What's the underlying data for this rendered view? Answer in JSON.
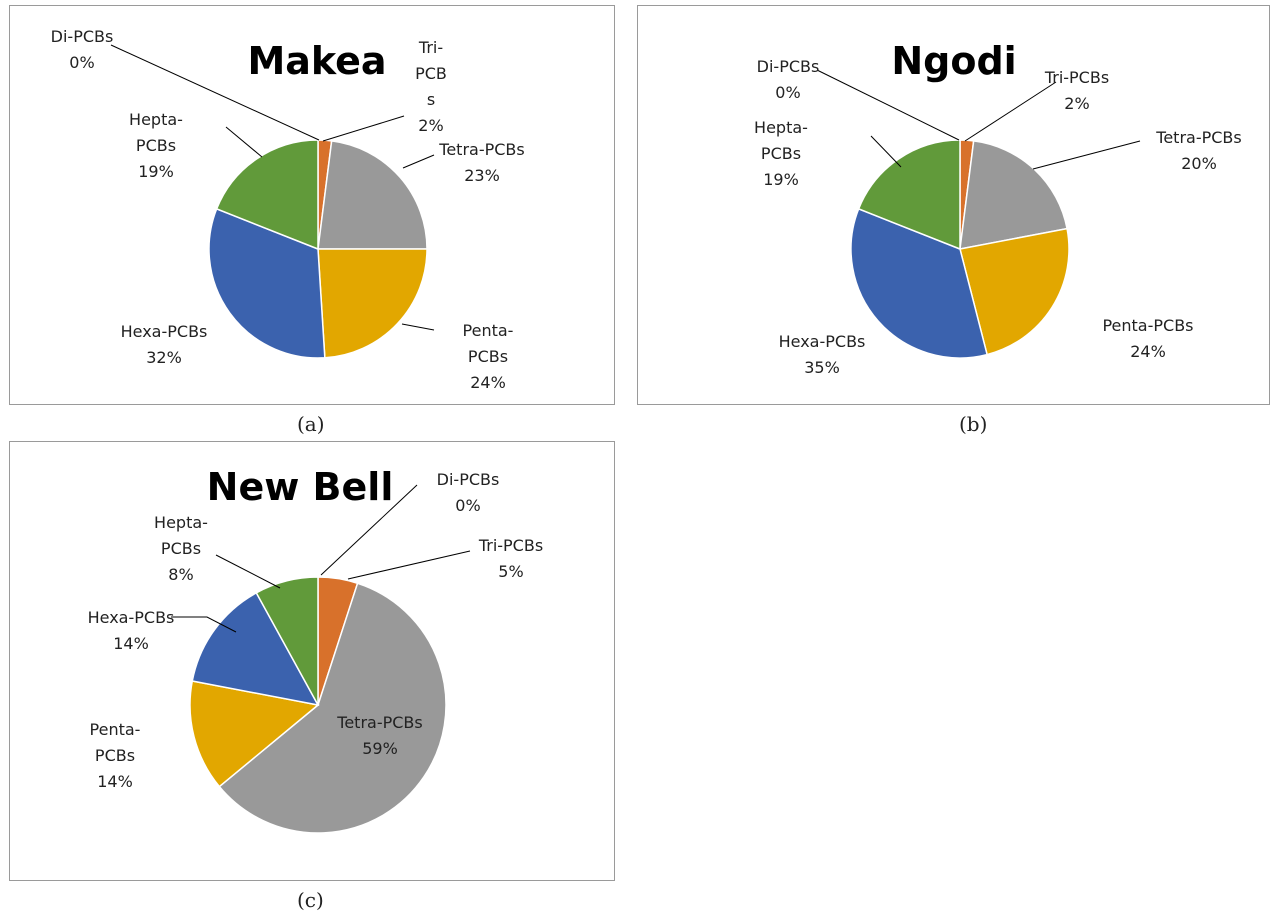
{
  "colors": {
    "Di-PCBs": "#4472c4",
    "Tri-PCBs": "#d8712b",
    "Tetra-PCBs": "#999999",
    "Penta-PCBs": "#e2a700",
    "Hexa-PCBs": "#3b62ae",
    "Hepta-PCBs": "#619a3a"
  },
  "captions": [
    "(a)",
    "(b)",
    "(c)"
  ],
  "chart_data": [
    {
      "type": "pie",
      "title": "Makea",
      "categories": [
        "Di-PCBs",
        "Tri-PCBs",
        "Tetra-PCBs",
        "Penta-PCBs",
        "Hexa-PCBs",
        "Hepta-PCBs"
      ],
      "values": [
        0,
        2,
        23,
        24,
        32,
        19
      ],
      "labels": [
        {
          "lines": [
            "Di-PCBs",
            "0%"
          ]
        },
        {
          "lines": [
            "Tri-",
            "PCB",
            "s",
            "2%"
          ]
        },
        {
          "lines": [
            "Tetra-PCBs",
            "23%"
          ]
        },
        {
          "lines": [
            "Penta-",
            "PCBs",
            "24%"
          ]
        },
        {
          "lines": [
            "Hexa-PCBs",
            "32%"
          ]
        },
        {
          "lines": [
            "Hepta-",
            "PCBs",
            "19%"
          ]
        }
      ]
    },
    {
      "type": "pie",
      "title": "Ngodi",
      "categories": [
        "Di-PCBs",
        "Tri-PCBs",
        "Tetra-PCBs",
        "Penta-PCBs",
        "Hexa-PCBs",
        "Hepta-PCBs"
      ],
      "values": [
        0,
        2,
        20,
        24,
        35,
        19
      ],
      "labels": [
        {
          "lines": [
            "Di-PCBs",
            "0%"
          ]
        },
        {
          "lines": [
            "Tri-PCBs",
            "2%"
          ]
        },
        {
          "lines": [
            "Tetra-PCBs",
            "20%"
          ]
        },
        {
          "lines": [
            "Penta-PCBs",
            "24%"
          ]
        },
        {
          "lines": [
            "Hexa-PCBs",
            "35%"
          ]
        },
        {
          "lines": [
            "Hepta-",
            "PCBs",
            "19%"
          ]
        }
      ]
    },
    {
      "type": "pie",
      "title": "New Bell",
      "categories": [
        "Di-PCBs",
        "Tri-PCBs",
        "Tetra-PCBs",
        "Penta-PCBs",
        "Hexa-PCBs",
        "Hepta-PCBs"
      ],
      "values": [
        0,
        5,
        59,
        14,
        14,
        8
      ],
      "labels": [
        {
          "lines": [
            "Di-PCBs",
            "0%"
          ]
        },
        {
          "lines": [
            "Tri-PCBs",
            "5%"
          ]
        },
        {
          "lines": [
            "Tetra-PCBs",
            "59%"
          ]
        },
        {
          "lines": [
            "Penta-",
            "PCBs",
            "14%"
          ]
        },
        {
          "lines": [
            "Hexa-PCBs",
            "14%"
          ]
        },
        {
          "lines": [
            "Hepta-",
            "PCBs",
            "8%"
          ]
        }
      ]
    }
  ]
}
